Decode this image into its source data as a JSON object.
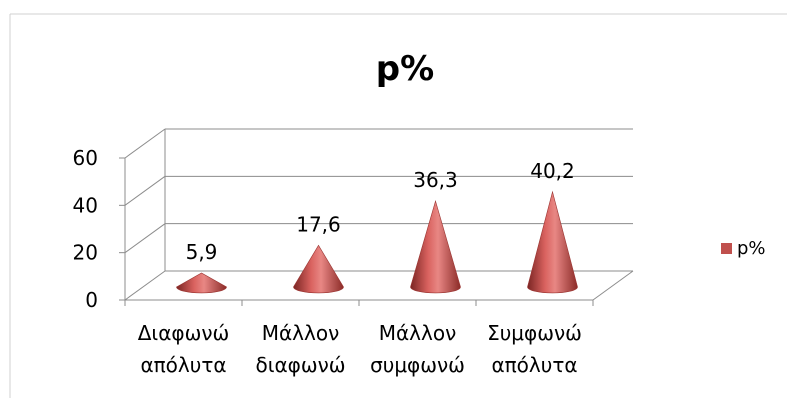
{
  "chart_data": {
    "type": "bar",
    "shape": "cone",
    "title": "p%",
    "categories": [
      [
        "Διαφωνώ",
        "απόλυτα"
      ],
      [
        "Μάλλον",
        "διαφωνώ"
      ],
      [
        "Μάλλον",
        "συμφωνώ"
      ],
      [
        "Συμφωνώ",
        "απόλυτα"
      ]
    ],
    "series": [
      {
        "name": "p%",
        "values": [
          "5,9",
          "17,6",
          "36,3",
          "40,2"
        ],
        "color": "#c0504d"
      }
    ],
    "yticks": [
      "0",
      "20",
      "40",
      "60"
    ],
    "ylim": [
      0,
      60
    ],
    "grid": true,
    "legend": "right"
  }
}
